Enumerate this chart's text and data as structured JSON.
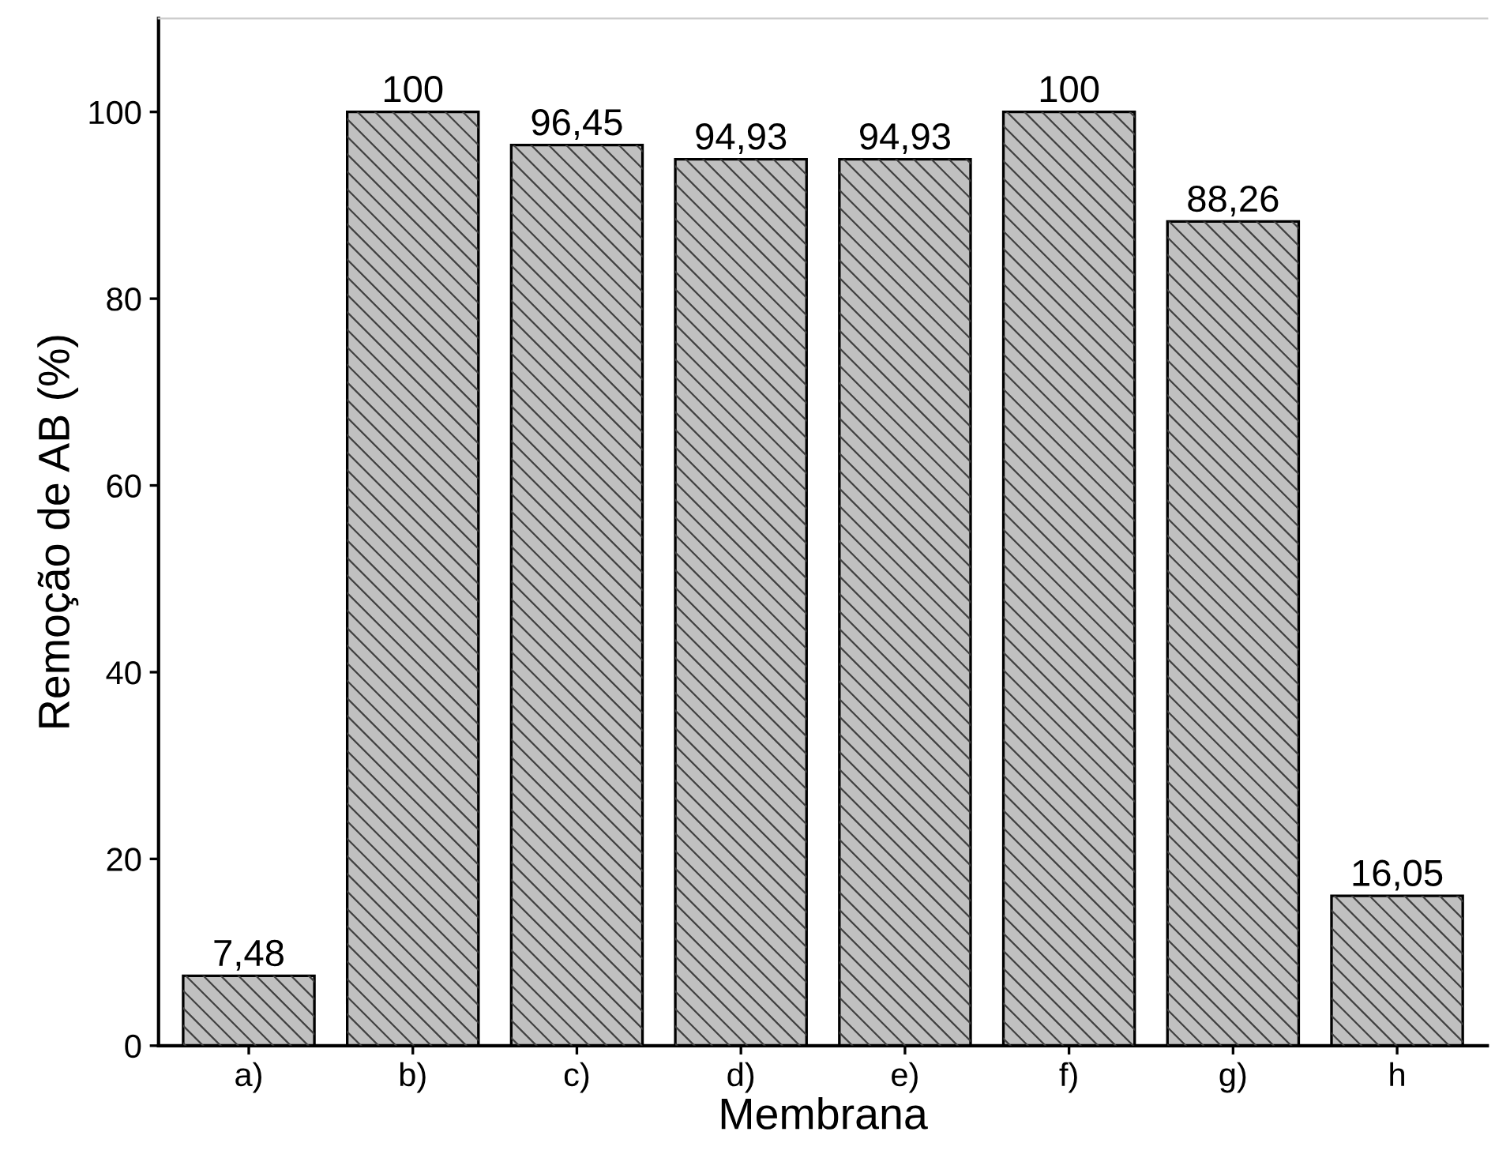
{
  "chart_data": {
    "type": "bar",
    "xlabel": "Membrana",
    "ylabel": "Remoção de AB (%)",
    "categories": [
      "a)",
      "b)",
      "c)",
      "d)",
      "e)",
      "f)",
      "g)",
      "h"
    ],
    "values": [
      7.48,
      100,
      96.45,
      94.93,
      94.93,
      100,
      88.26,
      16.05
    ],
    "value_labels": [
      "7,48",
      "100",
      "96,45",
      "94,93",
      "94,93",
      "100",
      "88,26",
      "16,05"
    ],
    "color": "#c0c0c0",
    "ylim": [
      0,
      110
    ],
    "yticks": [
      0,
      20,
      40,
      60,
      80,
      100
    ],
    "grid": false
  }
}
